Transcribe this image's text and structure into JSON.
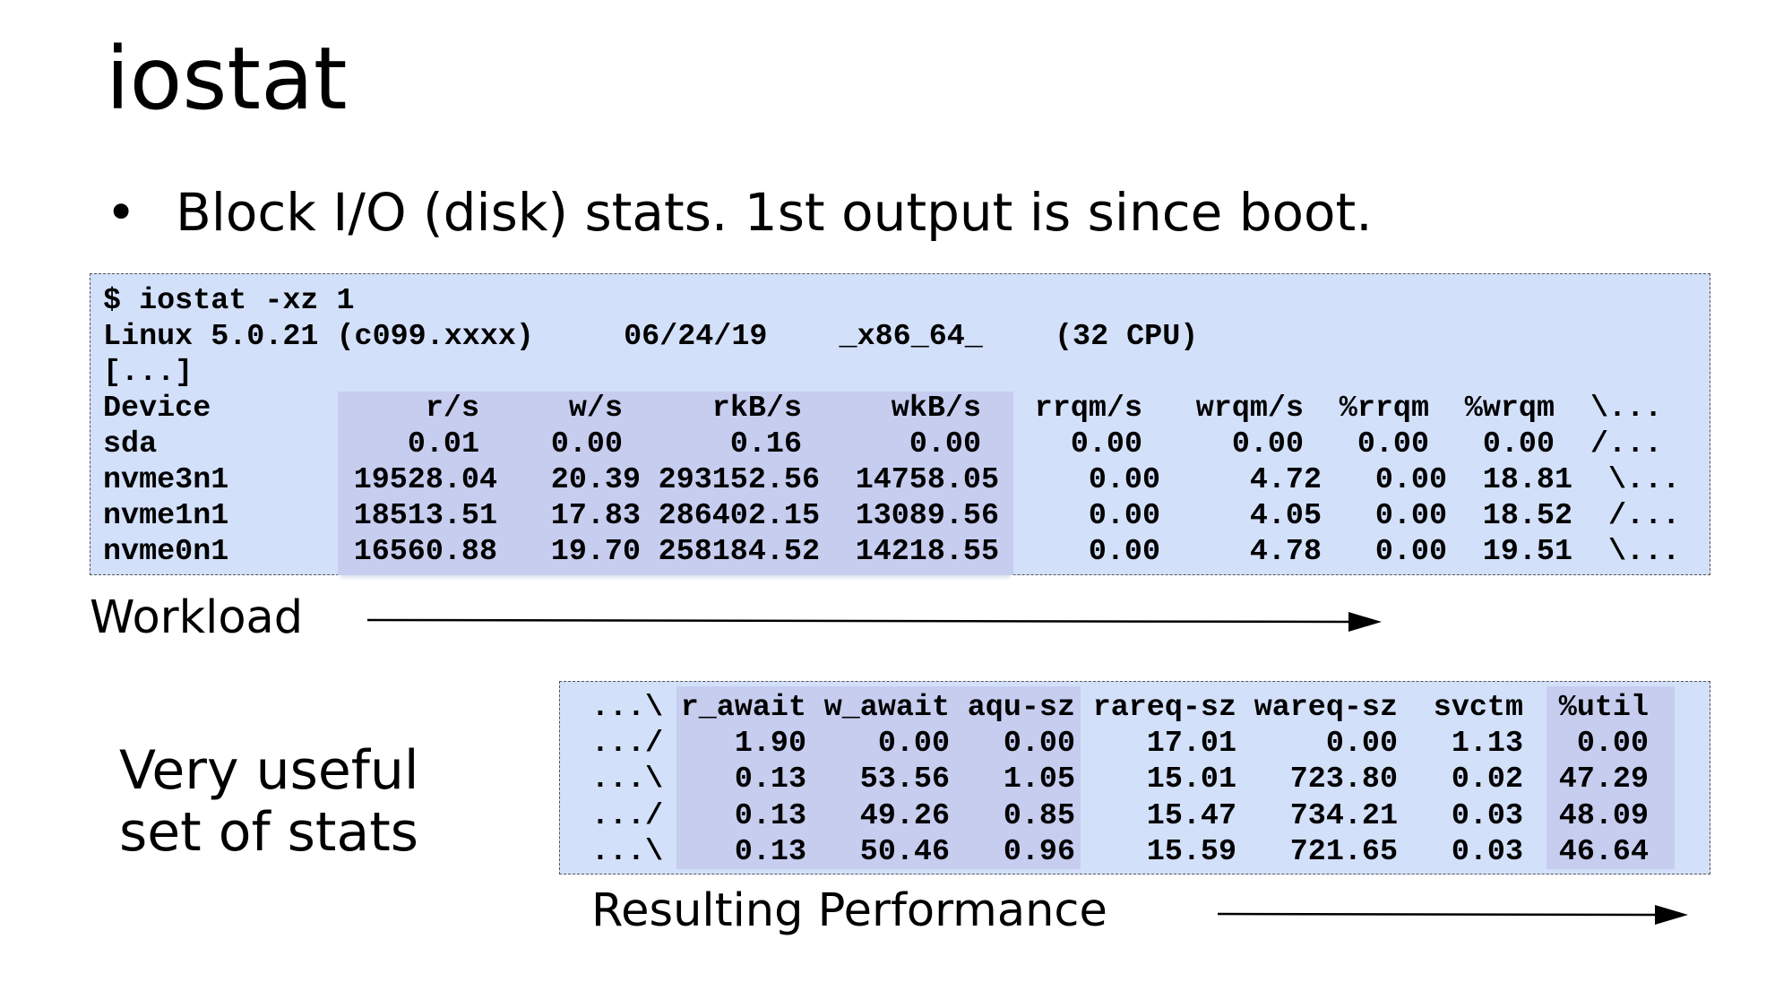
{
  "title": "iostat",
  "bullet": "Block I/O (disk) stats. 1st output is since boot.",
  "terminal": {
    "command": "$ iostat -xz 1",
    "sysinfo": "Linux 5.0.21 (c099.xxxx)     06/24/19    _x86_64_    (32 CPU)",
    "ellipsis": "[...]",
    "headers": [
      "Device",
      "r/s",
      "w/s",
      "rkB/s",
      "wkB/s",
      "rrqm/s",
      "wrqm/s",
      "%rrqm",
      "%wrqm",
      "\\..."
    ],
    "rows": [
      [
        "sda",
        "0.01",
        "0.00",
        "0.16",
        "0.00",
        "0.00",
        "0.00",
        "0.00",
        "0.00",
        "/..."
      ],
      [
        "nvme3n1",
        "19528.04",
        "20.39",
        "293152.56",
        "14758.05",
        "0.00",
        "4.72",
        "0.00",
        "18.81",
        "\\..."
      ],
      [
        "nvme1n1",
        "18513.51",
        "17.83",
        "286402.15",
        "13089.56",
        "0.00",
        "4.05",
        "0.00",
        "18.52",
        "/..."
      ],
      [
        "nvme0n1",
        "16560.88",
        "19.70",
        "258184.52",
        "14218.55",
        "0.00",
        "4.78",
        "0.00",
        "19.51",
        "\\..."
      ]
    ]
  },
  "continued": {
    "headers": [
      "...\\",
      "r_await",
      "w_await",
      "aqu-sz",
      "rareq-sz",
      "wareq-sz",
      "svctm",
      "%util"
    ],
    "rows": [
      [
        ".../",
        "1.90",
        "0.00",
        "0.00",
        "17.01",
        "0.00",
        "1.13",
        "0.00"
      ],
      [
        "...\\",
        "0.13",
        "53.56",
        "1.05",
        "15.01",
        "723.80",
        "0.02",
        "47.29"
      ],
      [
        ".../",
        "0.13",
        "49.26",
        "0.85",
        "15.47",
        "734.21",
        "0.03",
        "48.09"
      ],
      [
        "...\\",
        "0.13",
        "50.46",
        "0.96",
        "15.59",
        "721.65",
        "0.03",
        "46.64"
      ]
    ]
  },
  "labels": {
    "workload": "Workload",
    "useful_1": "Very useful",
    "useful_2": "set of stats",
    "performance": "Resulting Performance"
  },
  "colors": {
    "box": "#d3e0fa",
    "highlight": "#c6cdef"
  }
}
